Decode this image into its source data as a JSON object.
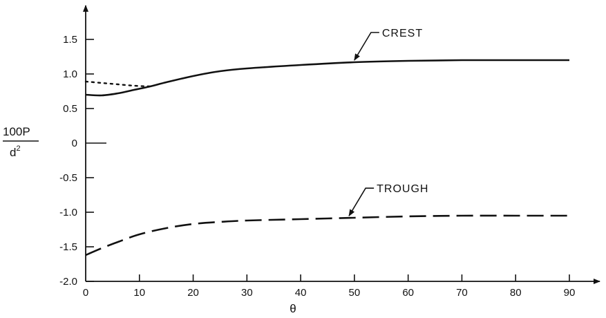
{
  "chart_data": {
    "type": "line",
    "xlabel": "θ",
    "ylabel": {
      "numerator": "100P",
      "denominator": "d",
      "exponent": "2"
    },
    "xlim": [
      0,
      90
    ],
    "ylim": [
      -2.0,
      1.75
    ],
    "x_ticks": [
      0,
      10,
      20,
      30,
      40,
      50,
      60,
      70,
      80,
      90
    ],
    "x_tick_labels": [
      "0",
      "10",
      "20",
      "30",
      "40",
      "50",
      "60",
      "70",
      "80",
      "90"
    ],
    "y_ticks": [
      1.5,
      1.0,
      0.5,
      0,
      -0.5,
      -1.0,
      -1.5,
      -2.0
    ],
    "y_tick_labels": [
      "1.5",
      "1.0",
      "0.5",
      "0",
      "-0.5",
      "-1.0",
      "-1.5",
      "-2.0"
    ],
    "grid": false,
    "series": [
      {
        "name": "CREST",
        "style": "solid",
        "x": [
          0,
          3,
          6,
          9,
          12,
          15,
          20,
          25,
          30,
          40,
          50,
          60,
          70,
          80,
          90
        ],
        "values": [
          0.7,
          0.69,
          0.72,
          0.77,
          0.82,
          0.88,
          0.97,
          1.04,
          1.08,
          1.13,
          1.17,
          1.19,
          1.2,
          1.2,
          1.2
        ]
      },
      {
        "name": "",
        "style": "dotted",
        "x": [
          0,
          3,
          6,
          9,
          12
        ],
        "values": [
          0.89,
          0.87,
          0.85,
          0.83,
          0.82
        ]
      },
      {
        "name": "TROUGH",
        "style": "dashed",
        "x": [
          0,
          3,
          6,
          10,
          15,
          20,
          25,
          30,
          40,
          50,
          60,
          70,
          80,
          90
        ],
        "values": [
          -1.62,
          -1.52,
          -1.43,
          -1.32,
          -1.23,
          -1.17,
          -1.14,
          -1.12,
          -1.1,
          -1.08,
          -1.06,
          -1.05,
          -1.05,
          -1.05
        ]
      }
    ],
    "annotations": [
      {
        "text": "CREST",
        "series": "CREST",
        "x": 50
      },
      {
        "text": "TROUGH",
        "series": "TROUGH",
        "x": 49
      }
    ]
  }
}
